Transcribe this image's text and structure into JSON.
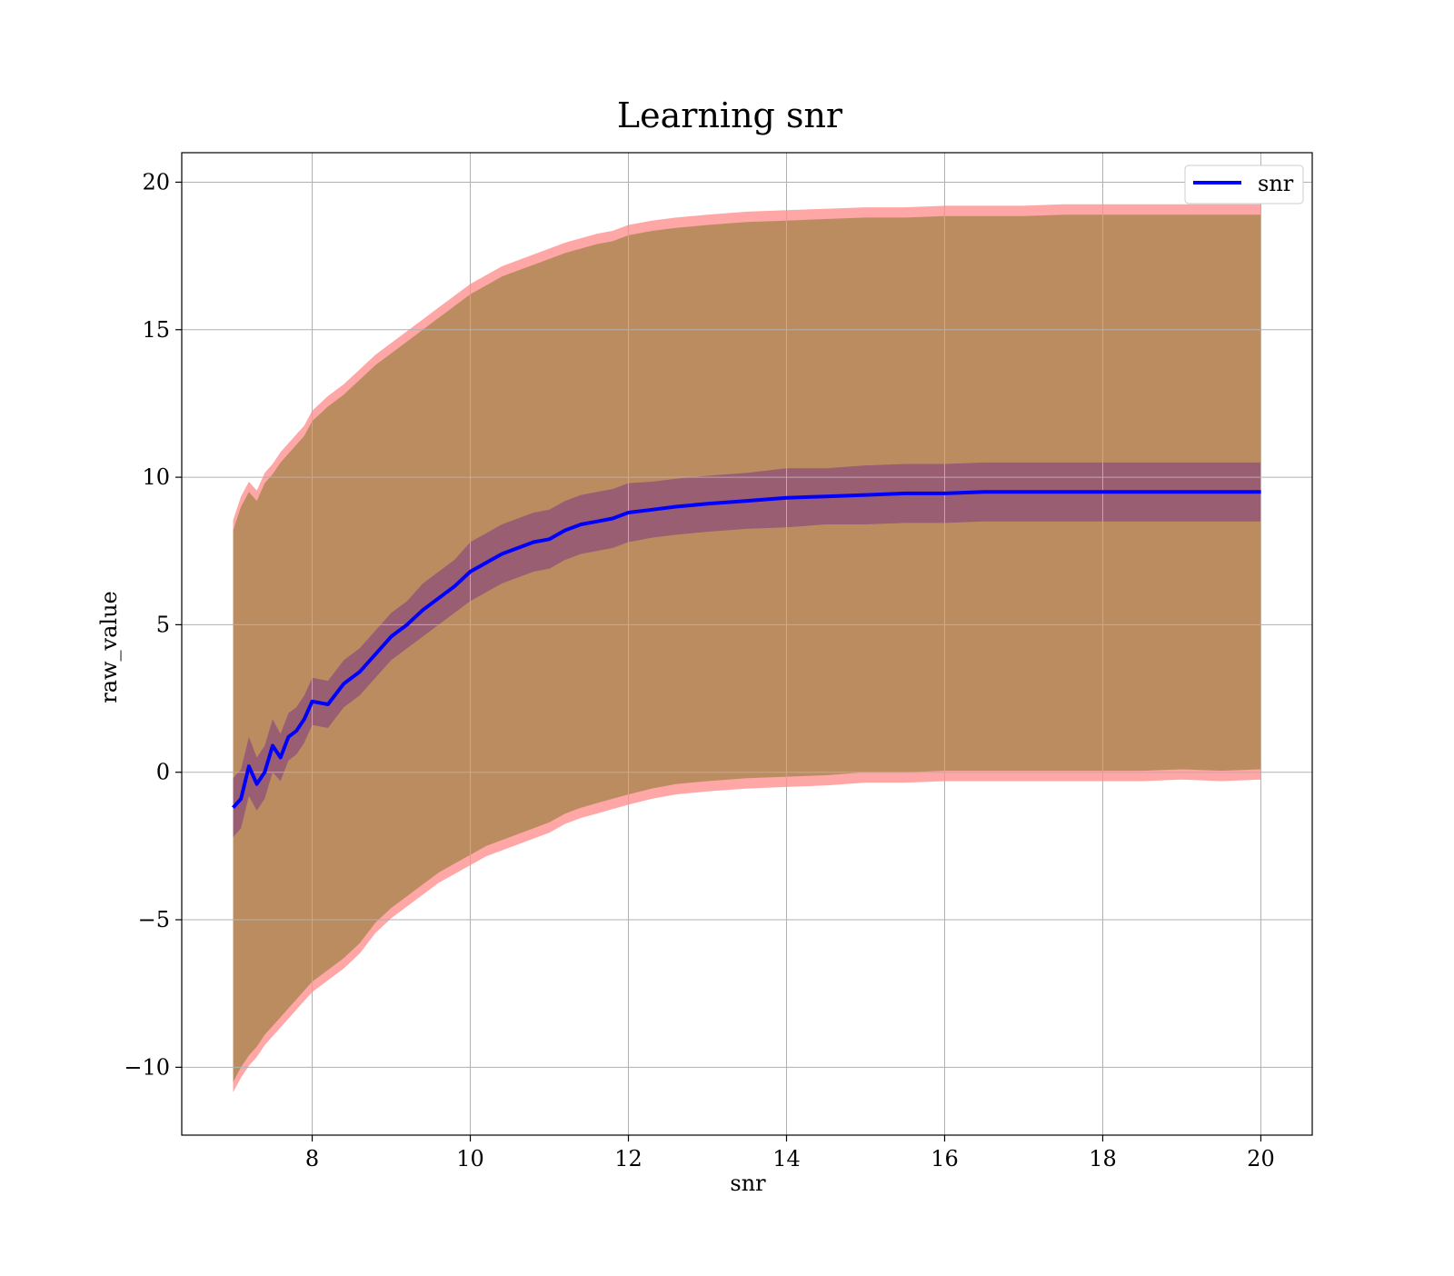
{
  "chart_data": {
    "type": "line",
    "title": "Learning snr",
    "xlabel": "snr",
    "ylabel": "raw_value",
    "xlim": [
      6.35,
      20.65
    ],
    "ylim": [
      -12.3,
      21.0
    ],
    "xticks": [
      8,
      10,
      12,
      14,
      16,
      18,
      20
    ],
    "yticks": [
      -10,
      -5,
      0,
      5,
      10,
      15,
      20
    ],
    "xtick_labels": [
      "8",
      "10",
      "12",
      "14",
      "16",
      "18",
      "20"
    ],
    "ytick_labels": [
      "−10",
      "−5",
      "0",
      "5",
      "10",
      "15",
      "20"
    ],
    "grid": true,
    "legend": {
      "position": "top-right",
      "entries": [
        "snr"
      ]
    },
    "colors": {
      "mean_line": "#0000ff",
      "outer_band": "#ff8080",
      "mid_band": "#b58a5a",
      "inner_band": "#8b4a7a"
    },
    "series": [
      {
        "name": "snr",
        "x": [
          7.0,
          7.1,
          7.2,
          7.3,
          7.4,
          7.5,
          7.6,
          7.7,
          7.8,
          7.9,
          8.0,
          8.2,
          8.4,
          8.6,
          8.8,
          9.0,
          9.2,
          9.4,
          9.6,
          9.8,
          10.0,
          10.2,
          10.4,
          10.6,
          10.8,
          11.0,
          11.2,
          11.4,
          11.6,
          11.8,
          12.0,
          12.3,
          12.6,
          13.0,
          13.5,
          14.0,
          14.5,
          15.0,
          15.5,
          16.0,
          16.5,
          17.0,
          17.5,
          18.0,
          18.5,
          19.0,
          19.5,
          20.0
        ],
        "mean": [
          -1.2,
          -0.9,
          0.2,
          -0.4,
          0.0,
          0.9,
          0.5,
          1.2,
          1.4,
          1.8,
          2.4,
          2.3,
          3.0,
          3.4,
          4.0,
          4.6,
          5.0,
          5.5,
          5.9,
          6.3,
          6.8,
          7.1,
          7.4,
          7.6,
          7.8,
          7.9,
          8.2,
          8.4,
          8.5,
          8.6,
          8.8,
          8.9,
          9.0,
          9.1,
          9.2,
          9.3,
          9.35,
          9.4,
          9.45,
          9.45,
          9.5,
          9.5,
          9.5,
          9.5,
          9.5,
          9.5,
          9.5,
          9.5
        ],
        "band_mean_pm_std": {
          "lower": [
            -2.2,
            -1.9,
            -0.8,
            -1.3,
            -0.9,
            0.0,
            -0.3,
            0.4,
            0.6,
            1.0,
            1.6,
            1.5,
            2.2,
            2.6,
            3.2,
            3.8,
            4.2,
            4.6,
            5.0,
            5.4,
            5.8,
            6.1,
            6.4,
            6.6,
            6.8,
            6.9,
            7.2,
            7.4,
            7.5,
            7.6,
            7.8,
            7.95,
            8.05,
            8.15,
            8.25,
            8.3,
            8.4,
            8.4,
            8.45,
            8.45,
            8.5,
            8.5,
            8.5,
            8.5,
            8.5,
            8.5,
            8.5,
            8.5
          ],
          "upper": [
            -0.2,
            0.1,
            1.2,
            0.5,
            0.9,
            1.8,
            1.3,
            2.0,
            2.2,
            2.6,
            3.2,
            3.1,
            3.8,
            4.2,
            4.8,
            5.4,
            5.8,
            6.4,
            6.8,
            7.2,
            7.8,
            8.1,
            8.4,
            8.6,
            8.8,
            8.9,
            9.2,
            9.4,
            9.5,
            9.6,
            9.8,
            9.85,
            9.95,
            10.05,
            10.15,
            10.3,
            10.3,
            10.4,
            10.45,
            10.45,
            10.5,
            10.5,
            10.5,
            10.5,
            10.5,
            10.5,
            10.5,
            10.5
          ]
        },
        "band_min_max": {
          "lower": [
            -10.5,
            -10.0,
            -9.6,
            -9.3,
            -8.9,
            -8.6,
            -8.3,
            -8.0,
            -7.7,
            -7.4,
            -7.1,
            -6.7,
            -6.3,
            -5.8,
            -5.1,
            -4.6,
            -4.2,
            -3.8,
            -3.4,
            -3.1,
            -2.8,
            -2.5,
            -2.3,
            -2.1,
            -1.9,
            -1.7,
            -1.4,
            -1.2,
            -1.05,
            -0.9,
            -0.75,
            -0.55,
            -0.4,
            -0.3,
            -0.2,
            -0.15,
            -0.1,
            0.0,
            0.0,
            0.05,
            0.05,
            0.05,
            0.05,
            0.05,
            0.05,
            0.1,
            0.05,
            0.1
          ],
          "upper": [
            8.2,
            9.0,
            9.5,
            9.2,
            9.8,
            10.1,
            10.5,
            10.8,
            11.1,
            11.4,
            11.9,
            12.4,
            12.8,
            13.3,
            13.8,
            14.2,
            14.6,
            15.0,
            15.4,
            15.8,
            16.2,
            16.5,
            16.8,
            17.0,
            17.2,
            17.4,
            17.6,
            17.75,
            17.9,
            18.0,
            18.2,
            18.35,
            18.45,
            18.55,
            18.65,
            18.7,
            18.75,
            18.8,
            18.8,
            18.85,
            18.85,
            18.85,
            18.9,
            18.9,
            18.9,
            18.9,
            18.9,
            18.9
          ]
        }
      }
    ]
  }
}
